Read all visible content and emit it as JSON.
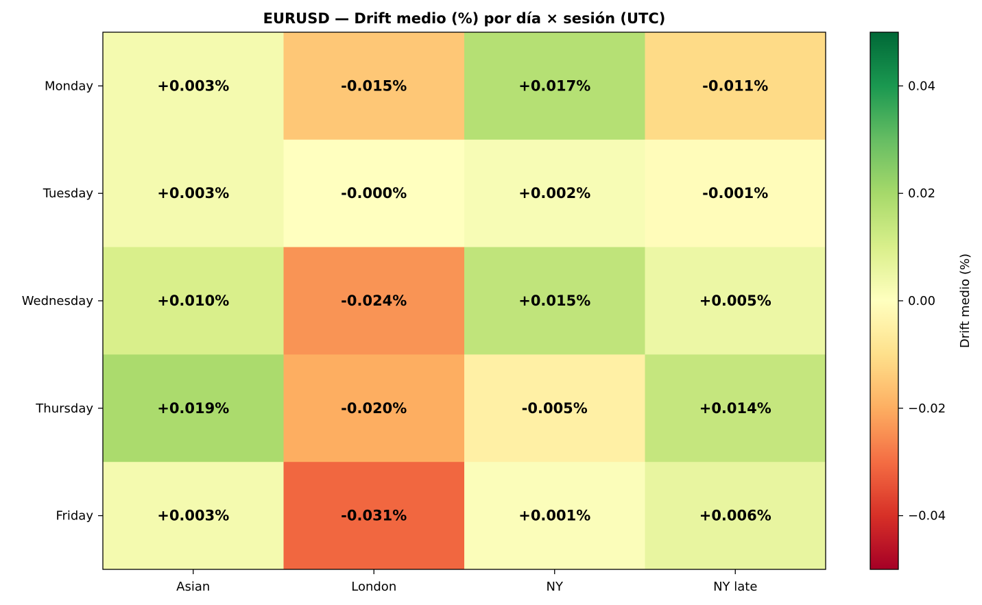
{
  "chart_data": {
    "type": "heatmap",
    "title": "EURUSD — Drift medio (%) por día × sesión (UTC)",
    "x_categories": [
      "Asian",
      "London",
      "NY",
      "NY late"
    ],
    "y_categories": [
      "Monday",
      "Tuesday",
      "Wednesday",
      "Thursday",
      "Friday"
    ],
    "values": [
      [
        0.003,
        -0.015,
        0.017,
        -0.011
      ],
      [
        0.003,
        -0.0,
        0.002,
        -0.001
      ],
      [
        0.01,
        -0.024,
        0.015,
        0.005
      ],
      [
        0.019,
        -0.02,
        -0.005,
        0.014
      ],
      [
        0.003,
        -0.031,
        0.001,
        0.006
      ]
    ],
    "cell_labels": [
      [
        "+0.003%",
        "-0.015%",
        "+0.017%",
        "-0.011%"
      ],
      [
        "+0.003%",
        "-0.000%",
        "+0.002%",
        "-0.001%"
      ],
      [
        "+0.010%",
        "-0.024%",
        "+0.015%",
        "+0.005%"
      ],
      [
        "+0.019%",
        "-0.020%",
        "-0.005%",
        "+0.014%"
      ],
      [
        "+0.003%",
        "-0.031%",
        "+0.001%",
        "+0.006%"
      ]
    ],
    "colormap": "RdYlGn",
    "vmin": -0.05,
    "vmax": 0.05,
    "colorbar": {
      "label": "Drift medio (%)",
      "ticks": [
        0.04,
        0.02,
        0.0,
        -0.02,
        -0.04
      ],
      "tick_labels": [
        "0.04",
        "0.02",
        "0.00",
        "−0.02",
        "−0.04"
      ]
    }
  }
}
